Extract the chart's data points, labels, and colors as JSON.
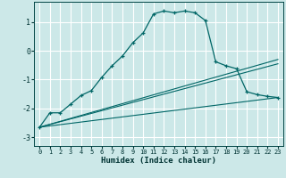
{
  "background_color": "#cce8e8",
  "grid_color": "#ffffff",
  "line_color": "#006666",
  "xlabel": "Humidex (Indice chaleur)",
  "xlim": [
    -0.5,
    23.5
  ],
  "ylim": [
    -3.3,
    1.7
  ],
  "xticks": [
    0,
    1,
    2,
    3,
    4,
    5,
    6,
    7,
    8,
    9,
    10,
    11,
    12,
    13,
    14,
    15,
    16,
    17,
    18,
    19,
    20,
    21,
    22,
    23
  ],
  "yticks": [
    -3,
    -2,
    -1,
    0,
    1
  ],
  "main_x": [
    0,
    1,
    2,
    3,
    4,
    5,
    6,
    7,
    8,
    9,
    10,
    11,
    12,
    13,
    14,
    15,
    16,
    17,
    18,
    19,
    20,
    21,
    22,
    23
  ],
  "main_y": [
    -2.65,
    -2.15,
    -2.15,
    -1.85,
    -1.55,
    -1.38,
    -0.92,
    -0.52,
    -0.18,
    0.28,
    0.62,
    1.28,
    1.38,
    1.32,
    1.38,
    1.32,
    1.05,
    -0.38,
    -0.52,
    -0.62,
    -1.42,
    -1.52,
    -1.58,
    -1.62
  ],
  "line2_x": [
    0,
    23
  ],
  "line2_y": [
    -2.65,
    -0.45
  ],
  "line3_x": [
    0,
    23
  ],
  "line3_y": [
    -2.65,
    -0.3
  ],
  "line4_x": [
    0,
    23
  ],
  "line4_y": [
    -2.65,
    -1.62
  ]
}
